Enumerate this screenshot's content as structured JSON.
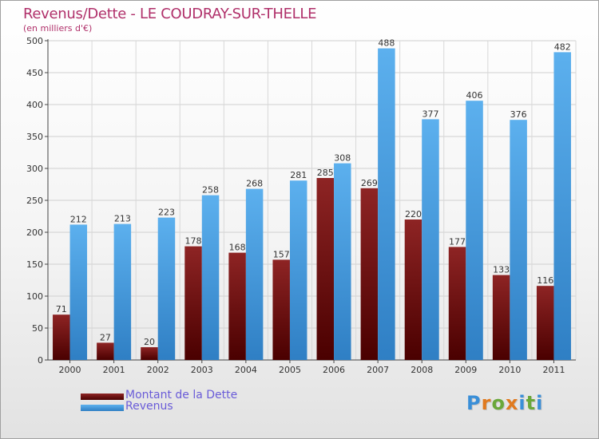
{
  "chart_data": {
    "type": "bar",
    "title": "Revenus/Dette - LE COUDRAY-SUR-THELLE",
    "ylabel": "(en milliers d'€)",
    "xlabel": "",
    "categories": [
      "2000",
      "2001",
      "2002",
      "2003",
      "2004",
      "2005",
      "2006",
      "2007",
      "2008",
      "2009",
      "2010",
      "2011"
    ],
    "series": [
      {
        "name": "Montant de la Dette",
        "values": [
          71,
          27,
          20,
          178,
          168,
          157,
          285,
          269,
          220,
          177,
          133,
          116
        ],
        "color": "#7a1010"
      },
      {
        "name": "Revenus",
        "values": [
          212,
          213,
          223,
          258,
          268,
          281,
          308,
          488,
          377,
          406,
          376,
          482
        ],
        "color": "#4fa3e6"
      }
    ],
    "ylim": [
      0,
      500
    ],
    "yticks": [
      0,
      50,
      100,
      150,
      200,
      250,
      300,
      350,
      400,
      450,
      500
    ],
    "grid": true,
    "legend_position": "bottom-left"
  },
  "brand": {
    "logo_text": "Proxiti"
  }
}
